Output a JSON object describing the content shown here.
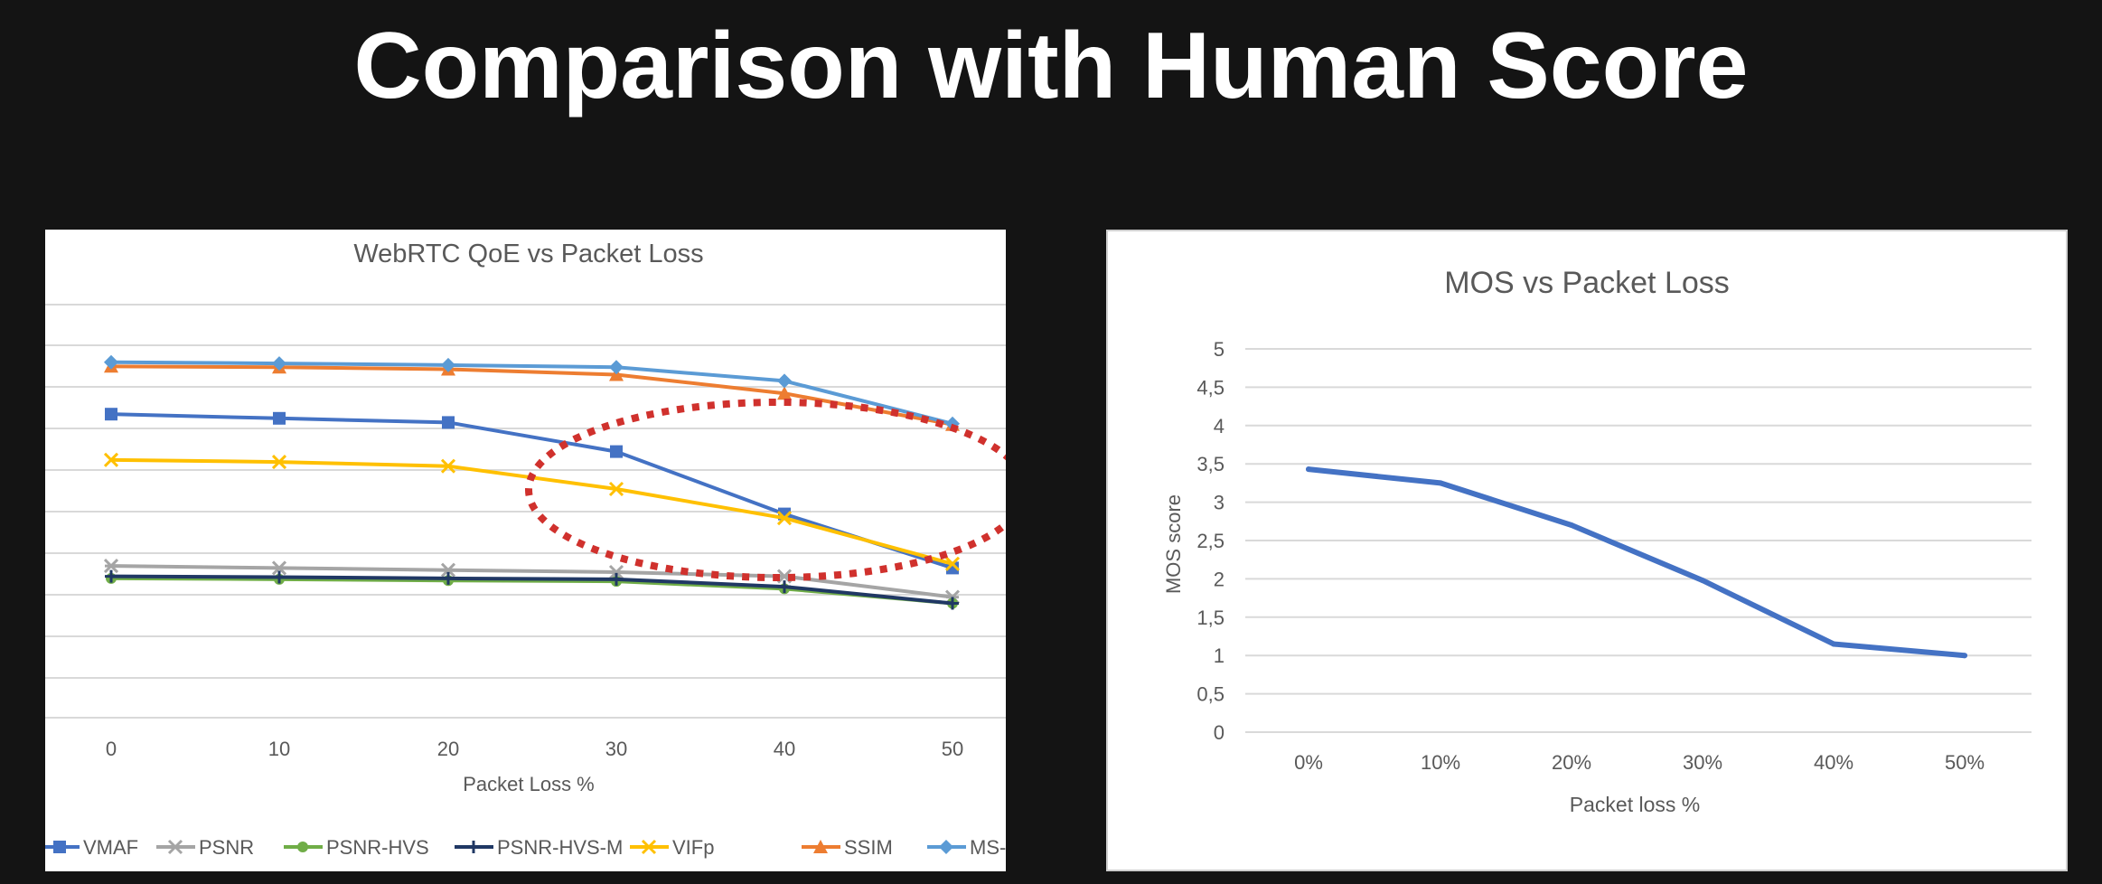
{
  "slide": {
    "title": "Comparison with Human Score"
  },
  "chart_data": [
    {
      "type": "line",
      "title": "WebRTC QoE vs Packet Loss",
      "xlabel": "Packet Loss %",
      "ylabel": "",
      "categories": [
        "0",
        "10",
        "20",
        "30",
        "40",
        "50"
      ],
      "y_tick_labels_visible": false,
      "grid": true,
      "legend_position": "bottom",
      "annotation": "red dotted ellipse highlighting the drop of VMAF and VIFp between 30 and 50",
      "series": [
        {
          "name": "VMAF",
          "color": "#4472c4",
          "marker": "square",
          "values": [
            0.73,
            0.72,
            0.71,
            0.64,
            0.49,
            0.36
          ]
        },
        {
          "name": "PSNR",
          "color": "#a5a5a5",
          "marker": "star",
          "values": [
            0.365,
            0.36,
            0.355,
            0.35,
            0.34,
            0.29
          ]
        },
        {
          "name": "PSNR-HVS",
          "color": "#70ad47",
          "marker": "circle",
          "values": [
            0.335,
            0.333,
            0.33,
            0.328,
            0.31,
            0.275
          ]
        },
        {
          "name": "PSNR-HVS-M",
          "color": "#203864",
          "marker": "plus",
          "values": [
            0.34,
            0.338,
            0.335,
            0.333,
            0.315,
            0.275
          ]
        },
        {
          "name": "VIFp",
          "color": "#ffc000",
          "marker": "x",
          "values": [
            0.62,
            0.615,
            0.605,
            0.55,
            0.48,
            0.37
          ]
        },
        {
          "name": "SSIM",
          "color": "#ed7d31",
          "marker": "triangle",
          "values": [
            0.845,
            0.843,
            0.838,
            0.825,
            0.78,
            0.705
          ]
        },
        {
          "name": "MS-SSIM",
          "color": "#5b9bd5",
          "marker": "diamond",
          "values": [
            0.855,
            0.852,
            0.848,
            0.843,
            0.81,
            0.707
          ]
        }
      ],
      "legend_labels": [
        "VMAF",
        "PSNR",
        "PSNR-HVS",
        "PSNR-HVS-M",
        "VIFp",
        "SSIM",
        "MS-SS"
      ]
    },
    {
      "type": "line",
      "title": "MOS vs Packet Loss",
      "xlabel": "Packet loss %",
      "ylabel": "MOS score",
      "categories": [
        "0%",
        "10%",
        "20%",
        "30%",
        "40%",
        "50%"
      ],
      "ylim": [
        0,
        5
      ],
      "yticks": [
        "0",
        "0,5",
        "1",
        "1,5",
        "2",
        "2,5",
        "3",
        "3,5",
        "4",
        "4,5",
        "5"
      ],
      "grid": true,
      "series": [
        {
          "color": "#4472c4",
          "values": [
            3.43,
            3.25,
            2.7,
            1.98,
            1.15,
            1.0
          ]
        }
      ]
    }
  ]
}
